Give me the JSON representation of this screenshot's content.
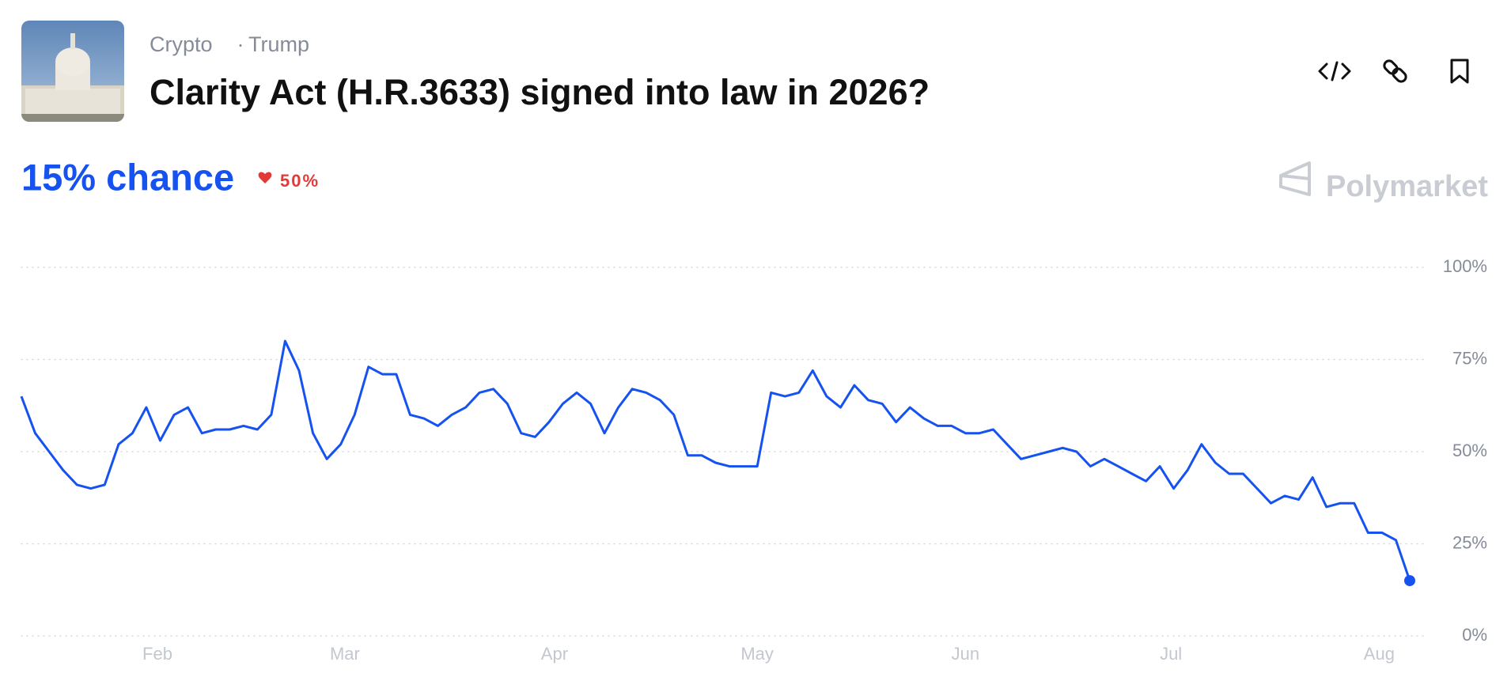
{
  "header": {
    "tags": [
      "Crypto",
      "Trump"
    ],
    "title": "Clarity Act (H.R.3633) signed into law in 2026?"
  },
  "summary": {
    "chance": "15% chance",
    "change": "50%"
  },
  "brand": "Polymarket",
  "chart_data": {
    "type": "line",
    "series": [
      {
        "color": "#1652f0",
        "values": [
          65,
          55,
          50,
          45,
          41,
          40,
          41,
          52,
          55,
          62,
          53,
          60,
          62,
          55,
          56,
          56,
          57,
          56,
          60,
          80,
          72,
          55,
          48,
          52,
          60,
          73,
          71,
          71,
          60,
          59,
          57,
          60,
          62,
          66,
          67,
          63,
          55,
          54,
          58,
          63,
          66,
          63,
          55,
          62,
          67,
          66,
          64,
          60,
          49,
          49,
          47,
          46,
          46,
          46,
          66,
          65,
          66,
          72,
          65,
          62,
          68,
          64,
          63,
          58,
          62,
          59,
          57,
          57,
          55,
          55,
          56,
          52,
          48,
          49,
          50,
          51,
          50,
          46,
          48,
          46,
          44,
          42,
          46,
          40,
          45,
          52,
          47,
          44,
          44,
          40,
          36,
          38,
          37,
          43,
          35,
          36,
          36,
          28,
          28,
          26,
          15
        ]
      }
    ],
    "xticks": [
      {
        "value": 9.8,
        "label": "Feb"
      },
      {
        "value": 23.3,
        "label": "Mar"
      },
      {
        "value": 38.4,
        "label": "Apr"
      },
      {
        "value": 53.0,
        "label": "May"
      },
      {
        "value": 68.0,
        "label": "Jun"
      },
      {
        "value": 82.8,
        "label": "Jul"
      },
      {
        "value": 97.8,
        "label": "Aug"
      }
    ],
    "xlim": [
      0,
      100
    ],
    "ylim": [
      0,
      100
    ],
    "yticks": [
      {
        "value": 0,
        "label": "0%"
      },
      {
        "value": 25,
        "label": "25%"
      },
      {
        "value": 50,
        "label": "50%"
      },
      {
        "value": 75,
        "label": "75%"
      },
      {
        "value": 100,
        "label": "100%"
      }
    ],
    "grid": true
  }
}
